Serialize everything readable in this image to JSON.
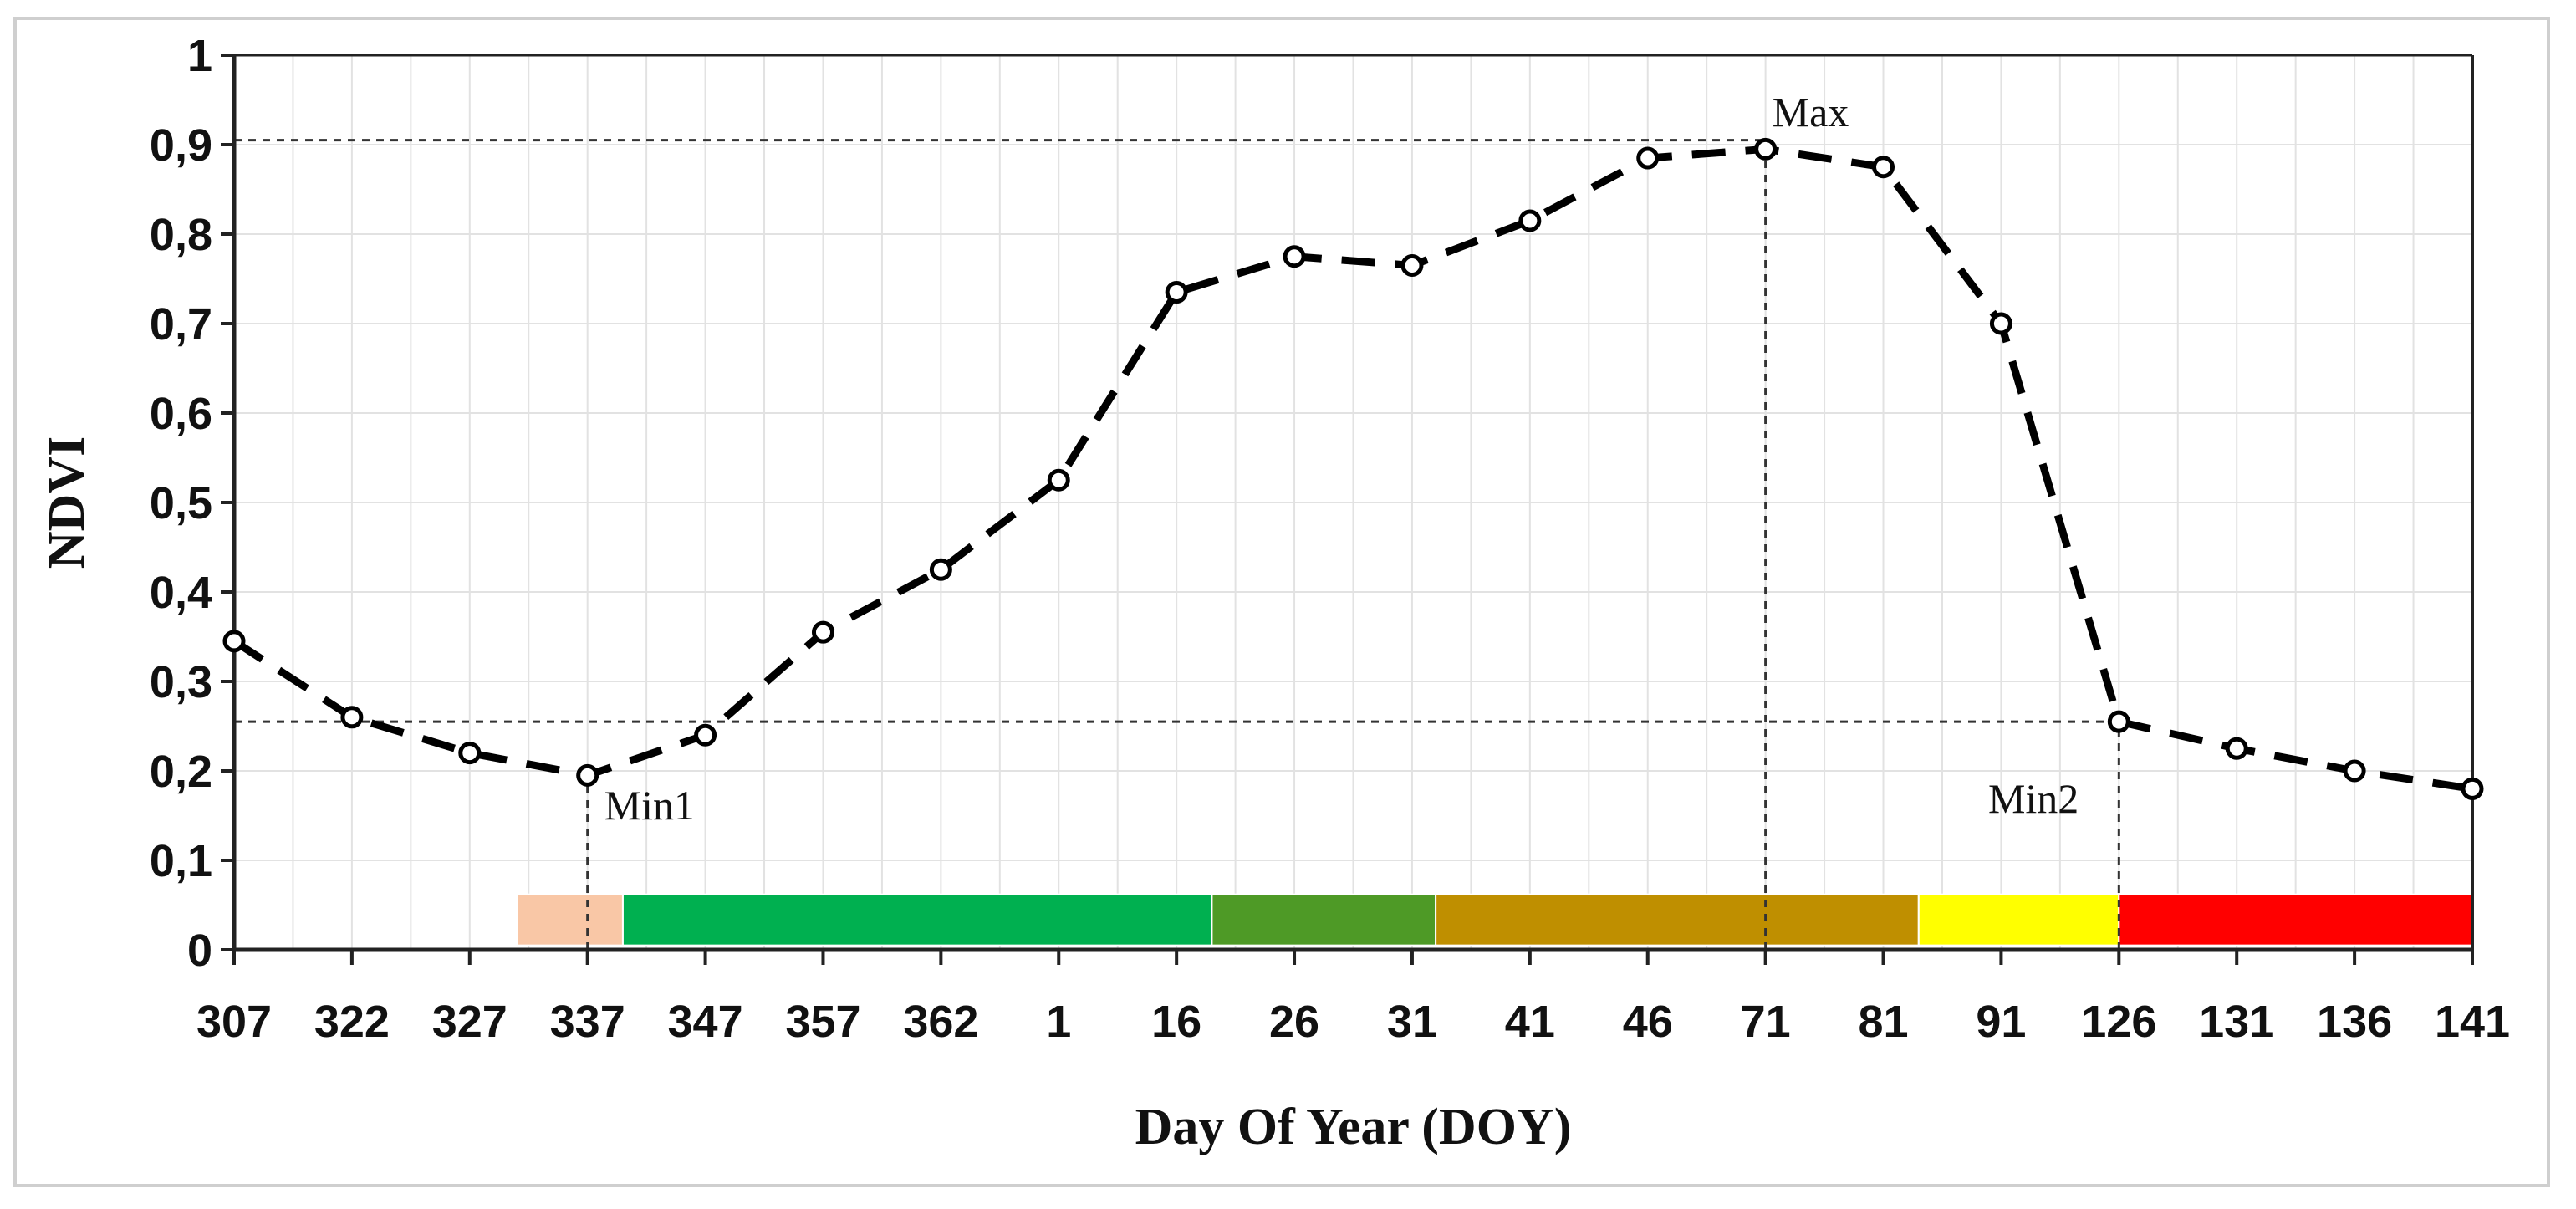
{
  "chart_data": {
    "type": "line",
    "title": "",
    "xlabel": "Day Of Year (DOY)",
    "ylabel": "NDVI",
    "categories": [
      "307",
      "322",
      "327",
      "337",
      "347",
      "357",
      "362",
      "1",
      "16",
      "26",
      "31",
      "41",
      "46",
      "71",
      "81",
      "91",
      "126",
      "131",
      "136",
      "141"
    ],
    "yticks": [
      "0",
      "0,1",
      "0,2",
      "0,3",
      "0,4",
      "0,5",
      "0,6",
      "0,7",
      "0,8",
      "0,9",
      "1"
    ],
    "ylim": [
      0,
      1
    ],
    "grid": true,
    "series": [
      {
        "name": "",
        "values": [
          0.345,
          0.26,
          0.22,
          0.195,
          0.24,
          0.355,
          0.425,
          0.525,
          0.735,
          0.775,
          0.765,
          0.815,
          0.885,
          0.895,
          0.875,
          0.7,
          0.255,
          0.225,
          0.2,
          0.18
        ],
        "color": "#000000",
        "line_style": "dashed",
        "marker": "open-circle"
      }
    ],
    "reference_lines": [
      {
        "kind": "horizontal",
        "y": 0.905,
        "from_category": "307",
        "to_category": "71"
      },
      {
        "kind": "horizontal",
        "y": 0.255,
        "from_category": "307",
        "to_category": "126"
      },
      {
        "kind": "vertical",
        "category": "337",
        "from_y": 0,
        "to_y": 0.195
      },
      {
        "kind": "vertical",
        "category": "71",
        "from_y": 0,
        "to_y": 0.895
      },
      {
        "kind": "vertical",
        "category": "126",
        "from_y": 0,
        "to_y": 0.255
      }
    ],
    "annotations": [
      {
        "text": "Max",
        "category": "71",
        "y": 0.93
      },
      {
        "text": "Min1",
        "category": "337",
        "y": 0.17
      },
      {
        "text": "Min2",
        "category": "126",
        "y": 0.17
      }
    ],
    "phase_bar": {
      "y_from": 0.005,
      "y_to": 0.062,
      "segments": [
        {
          "from": 2.4,
          "to": 3.3,
          "color": "#f9c7a6"
        },
        {
          "from": 3.3,
          "to": 8.3,
          "color": "#00b050"
        },
        {
          "from": 8.3,
          "to": 10.2,
          "color": "#4e9a26"
        },
        {
          "from": 10.2,
          "to": 14.3,
          "color": "#bf8f00"
        },
        {
          "from": 14.3,
          "to": 16.0,
          "color": "#ffff00"
        },
        {
          "from": 16.0,
          "to": 19.0,
          "color": "#ff0000"
        }
      ]
    }
  }
}
